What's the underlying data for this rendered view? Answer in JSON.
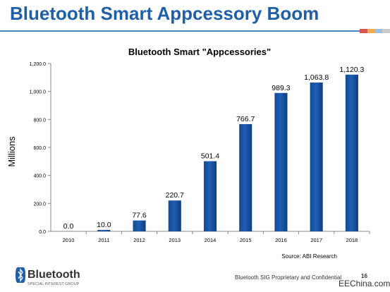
{
  "slide": {
    "title": "Bluetooth Smart Appcessory Boom",
    "footer_text": "Bluetooth SIG Proprietary and Confidential",
    "page_number": "16",
    "watermark": "EEChina.com",
    "logo_word": "Bluetooth",
    "logo_tagline": "SPECIAL INTEREST GROUP",
    "accent_color": "#1f5fa8"
  },
  "chart_data": {
    "type": "bar",
    "title": "Bluetooth Smart \"Appcessories\"",
    "ylabel": "Millions",
    "xlabel": "",
    "source": "Source: ABI Research",
    "categories": [
      "2010",
      "2011",
      "2012",
      "2013",
      "2014",
      "2015",
      "2016",
      "2017",
      "2018"
    ],
    "values": [
      0.0,
      10.0,
      77.6,
      220.7,
      501.4,
      766.7,
      989.3,
      1063.8,
      1120.3
    ],
    "value_labels": [
      "0.0",
      "10.0",
      "77.6",
      "220.7",
      "501.4",
      "766.7",
      "989.3",
      "1,063.8",
      "1,120.3"
    ],
    "ylim": [
      0,
      1200
    ],
    "yticks": [
      0,
      200,
      400,
      600,
      800,
      1000,
      1200
    ],
    "ytick_labels": [
      "0.0",
      "200.0",
      "400.0",
      "600.0",
      "800.0",
      "1,000.0",
      "1,200.0"
    ],
    "grid": false,
    "legend": "none",
    "bar_color": "#1f5fb3"
  }
}
